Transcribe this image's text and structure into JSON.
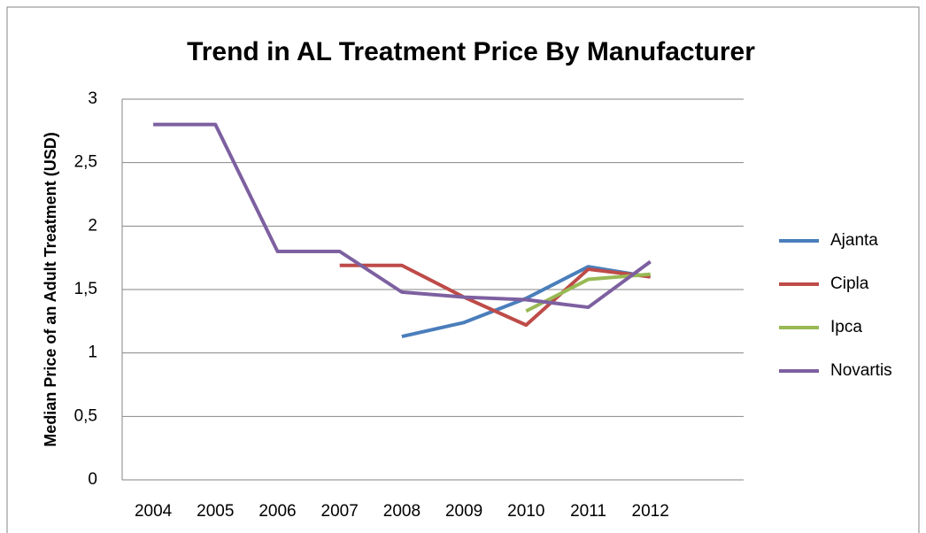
{
  "chart_data": {
    "type": "line",
    "title": "Trend in AL Treatment Price By Manufacturer",
    "y_label": "Median Price of an Adult Treatment (USD)",
    "categories": [
      "2004",
      "2005",
      "2006",
      "2007",
      "2008",
      "2009",
      "2010",
      "2011",
      "2012",
      null
    ],
    "series": [
      {
        "name": "Ajanta",
        "color": "#4a7ebb",
        "values": [
          null,
          null,
          null,
          null,
          1.13,
          1.24,
          1.43,
          1.68,
          1.6,
          null
        ]
      },
      {
        "name": "Cipla",
        "color": "#be4b48",
        "values": [
          null,
          null,
          null,
          1.69,
          1.69,
          1.44,
          1.22,
          1.66,
          1.6,
          null
        ]
      },
      {
        "name": "Ipca",
        "color": "#98b954",
        "values": [
          null,
          null,
          null,
          null,
          null,
          null,
          1.33,
          1.58,
          1.62,
          null
        ]
      },
      {
        "name": "Novartis",
        "color": "#7d60a0",
        "values": [
          2.8,
          2.8,
          1.8,
          1.8,
          1.48,
          1.44,
          1.42,
          1.36,
          1.72,
          null
        ]
      }
    ],
    "ylim": [
      0,
      3
    ],
    "yticks": [
      0,
      {
        "value": 0.5,
        "label": "0,5"
      },
      1,
      {
        "value": 1.5,
        "label": "1,5"
      },
      2,
      {
        "value": 2.5,
        "label": "2,5"
      },
      3
    ],
    "grid": true,
    "legend": "right"
  }
}
